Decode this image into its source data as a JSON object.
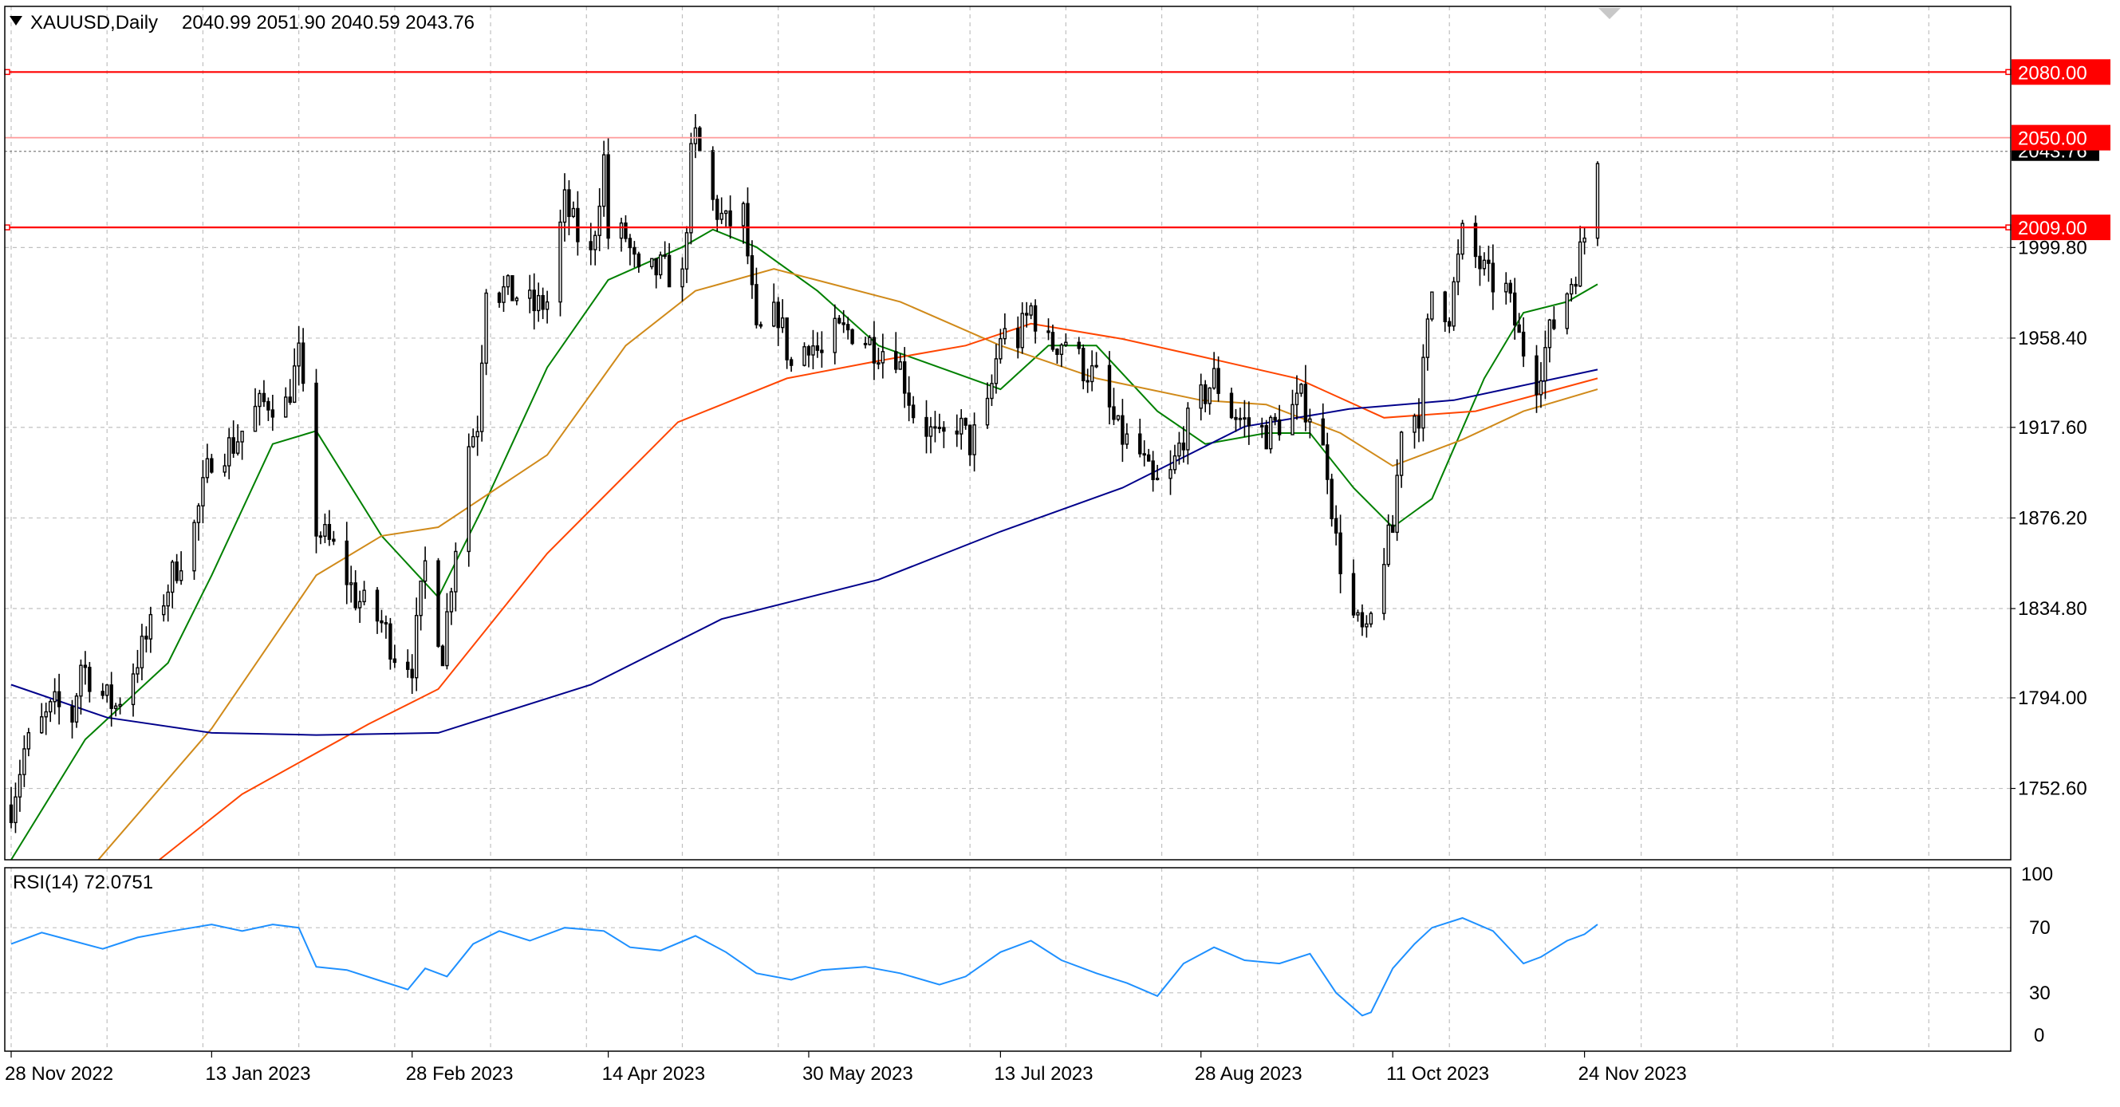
{
  "header": {
    "symbol": "XAUUSD,Daily",
    "ohlc": "2040.99 2051.90 2040.59 2043.76"
  },
  "rsi_header": {
    "label": "RSI(14) 72.0751"
  },
  "colors": {
    "background": "#ffffff",
    "grid": "#c0c0c0",
    "candle": "#000000",
    "ma_fast": "#008000",
    "ma_mid": "#d08a1a",
    "ma_slow": "#ff4500",
    "ma_long": "#00008b",
    "rsi_line": "#1e90ff",
    "hline": "#ff0000",
    "hline_light": "#ff9a9a"
  },
  "chart_data": [
    {
      "type": "line",
      "subtype": "candlestick",
      "x_range": [
        "2022-11-28",
        "2023-11-27"
      ],
      "ylim": [
        1720,
        2110
      ],
      "grid": true,
      "price_ticks": [
        "1752.60",
        "1794.00",
        "1834.80",
        "1876.20",
        "1917.60",
        "1958.40",
        "1999.80"
      ],
      "current_price_label": "2043.76",
      "date_ticks": [
        {
          "date": "2022-11-28",
          "label": "28 Nov 2022"
        },
        {
          "date": "2023-01-13",
          "label": "13 Jan 2023"
        },
        {
          "date": "2023-02-28",
          "label": "28 Feb 2023"
        },
        {
          "date": "2023-04-14",
          "label": "14 Apr 2023"
        },
        {
          "date": "2023-05-30",
          "label": "30 May 2023"
        },
        {
          "date": "2023-07-13",
          "label": "13 Jul 2023"
        },
        {
          "date": "2023-08-28",
          "label": "28 Aug 2023"
        },
        {
          "date": "2023-10-11",
          "label": "11 Oct 2023"
        },
        {
          "date": "2023-11-24",
          "label": "24 Nov 2023"
        }
      ],
      "horizontal_lines": [
        {
          "price": 2080.0,
          "label": "2080.00",
          "style": "strong"
        },
        {
          "price": 2050.0,
          "label": "2050.00",
          "style": "light"
        },
        {
          "price": 2009.0,
          "label": "2009.00",
          "style": "strong"
        }
      ],
      "price_path": [
        [
          "2022-11-28",
          1745
        ],
        [
          "2022-12-01",
          1770
        ],
        [
          "2022-12-05",
          1782
        ],
        [
          "2022-12-08",
          1790
        ],
        [
          "2022-12-12",
          1785
        ],
        [
          "2022-12-14",
          1810
        ],
        [
          "2022-12-19",
          1795
        ],
        [
          "2022-12-22",
          1790
        ],
        [
          "2022-12-27",
          1812
        ],
        [
          "2022-12-30",
          1825
        ],
        [
          "2023-01-04",
          1850
        ],
        [
          "2023-01-09",
          1872
        ],
        [
          "2023-01-13",
          1905
        ],
        [
          "2023-01-18",
          1910
        ],
        [
          "2023-01-23",
          1925
        ],
        [
          "2023-01-26",
          1930
        ],
        [
          "2023-01-30",
          1928
        ],
        [
          "2023-02-02",
          1950
        ],
        [
          "2023-02-06",
          1872
        ],
        [
          "2023-02-10",
          1862
        ],
        [
          "2023-02-15",
          1840
        ],
        [
          "2023-02-21",
          1828
        ],
        [
          "2023-02-24",
          1815
        ],
        [
          "2023-02-28",
          1810
        ],
        [
          "2023-03-03",
          1855
        ],
        [
          "2023-03-07",
          1815
        ],
        [
          "2023-03-10",
          1865
        ],
        [
          "2023-03-13",
          1910
        ],
        [
          "2023-03-15",
          1920
        ],
        [
          "2023-03-17",
          1985
        ],
        [
          "2023-03-20",
          1980
        ],
        [
          "2023-03-24",
          1978
        ],
        [
          "2023-03-28",
          1972
        ],
        [
          "2023-03-31",
          1975
        ],
        [
          "2023-04-04",
          2020
        ],
        [
          "2023-04-07",
          2005
        ],
        [
          "2023-04-10",
          1995
        ],
        [
          "2023-04-13",
          2040
        ],
        [
          "2023-04-14",
          2005
        ],
        [
          "2023-04-18",
          2005
        ],
        [
          "2023-04-21",
          1985
        ],
        [
          "2023-04-26",
          1990
        ],
        [
          "2023-05-01",
          1985
        ],
        [
          "2023-05-03",
          2040
        ],
        [
          "2023-05-04",
          2050
        ],
        [
          "2023-05-08",
          2020
        ],
        [
          "2023-05-11",
          2010
        ],
        [
          "2023-05-15",
          2015
        ],
        [
          "2023-05-18",
          1958
        ],
        [
          "2023-05-23",
          1970
        ],
        [
          "2023-05-26",
          1945
        ],
        [
          "2023-05-30",
          1958
        ],
        [
          "2023-06-02",
          1950
        ],
        [
          "2023-06-05",
          1960
        ],
        [
          "2023-06-09",
          1962
        ],
        [
          "2023-06-14",
          1955
        ],
        [
          "2023-06-19",
          1952
        ],
        [
          "2023-06-23",
          1925
        ],
        [
          "2023-06-29",
          1910
        ],
        [
          "2023-07-03",
          1920
        ],
        [
          "2023-07-06",
          1910
        ],
        [
          "2023-07-10",
          1925
        ],
        [
          "2023-07-13",
          1960
        ],
        [
          "2023-07-17",
          1958
        ],
        [
          "2023-07-20",
          1972
        ],
        [
          "2023-07-24",
          1955
        ],
        [
          "2023-07-28",
          1958
        ],
        [
          "2023-08-01",
          1945
        ],
        [
          "2023-08-04",
          1940
        ],
        [
          "2023-08-09",
          1915
        ],
        [
          "2023-08-14",
          1905
        ],
        [
          "2023-08-17",
          1890
        ],
        [
          "2023-08-21",
          1895
        ],
        [
          "2023-08-24",
          1915
        ],
        [
          "2023-08-28",
          1930
        ],
        [
          "2023-08-31",
          1940
        ],
        [
          "2023-09-04",
          1925
        ],
        [
          "2023-09-07",
          1920
        ],
        [
          "2023-09-12",
          1915
        ],
        [
          "2023-09-15",
          1920
        ],
        [
          "2023-09-20",
          1930
        ],
        [
          "2023-09-22",
          1925
        ],
        [
          "2023-09-26",
          1900
        ],
        [
          "2023-09-28",
          1865
        ],
        [
          "2023-10-02",
          1830
        ],
        [
          "2023-10-05",
          1820
        ],
        [
          "2023-10-06",
          1830
        ],
        [
          "2023-10-09",
          1860
        ],
        [
          "2023-10-11",
          1870
        ],
        [
          "2023-10-13",
          1920
        ],
        [
          "2023-10-17",
          1925
        ],
        [
          "2023-10-20",
          1980
        ],
        [
          "2023-10-24",
          1970
        ],
        [
          "2023-10-27",
          2005
        ],
        [
          "2023-10-30",
          1995
        ],
        [
          "2023-11-02",
          1985
        ],
        [
          "2023-11-06",
          1980
        ],
        [
          "2023-11-09",
          1958
        ],
        [
          "2023-11-13",
          1940
        ],
        [
          "2023-11-16",
          1960
        ],
        [
          "2023-11-20",
          1980
        ],
        [
          "2023-11-22",
          1990
        ],
        [
          "2023-11-24",
          2005
        ],
        [
          "2023-11-27",
          2044
        ]
      ],
      "series": [
        {
          "color": "#008000",
          "points": [
            [
              "2022-11-28",
              1720
            ],
            [
              "2022-12-15",
              1775
            ],
            [
              "2023-01-03",
              1810
            ],
            [
              "2023-01-13",
              1850
            ],
            [
              "2023-01-27",
              1910
            ],
            [
              "2023-02-06",
              1916
            ],
            [
              "2023-02-21",
              1868
            ],
            [
              "2023-03-06",
              1840
            ],
            [
              "2023-03-16",
              1880
            ],
            [
              "2023-03-31",
              1945
            ],
            [
              "2023-04-14",
              1985
            ],
            [
              "2023-05-01",
              2000
            ],
            [
              "2023-05-08",
              2008
            ],
            [
              "2023-05-18",
              2000
            ],
            [
              "2023-06-01",
              1980
            ],
            [
              "2023-06-15",
              1955
            ],
            [
              "2023-06-29",
              1945
            ],
            [
              "2023-07-13",
              1935
            ],
            [
              "2023-07-24",
              1955
            ],
            [
              "2023-08-04",
              1955
            ],
            [
              "2023-08-18",
              1925
            ],
            [
              "2023-08-29",
              1910
            ],
            [
              "2023-09-12",
              1915
            ],
            [
              "2023-09-22",
              1915
            ],
            [
              "2023-10-02",
              1890
            ],
            [
              "2023-10-11",
              1872
            ],
            [
              "2023-10-20",
              1885
            ],
            [
              "2023-11-01",
              1940
            ],
            [
              "2023-11-10",
              1970
            ],
            [
              "2023-11-20",
              1975
            ],
            [
              "2023-11-27",
              1983
            ]
          ]
        },
        {
          "color": "#d08a1a",
          "points": [
            [
              "2022-12-18",
              1720
            ],
            [
              "2023-01-13",
              1780
            ],
            [
              "2023-02-06",
              1850
            ],
            [
              "2023-02-21",
              1868
            ],
            [
              "2023-03-06",
              1872
            ],
            [
              "2023-03-31",
              1905
            ],
            [
              "2023-04-18",
              1955
            ],
            [
              "2023-05-04",
              1980
            ],
            [
              "2023-05-22",
              1990
            ],
            [
              "2023-06-20",
              1975
            ],
            [
              "2023-07-13",
              1955
            ],
            [
              "2023-08-04",
              1940
            ],
            [
              "2023-08-28",
              1930
            ],
            [
              "2023-09-12",
              1928
            ],
            [
              "2023-09-29",
              1915
            ],
            [
              "2023-10-11",
              1900
            ],
            [
              "2023-10-27",
              1912
            ],
            [
              "2023-11-10",
              1925
            ],
            [
              "2023-11-27",
              1935
            ]
          ]
        },
        {
          "color": "#ff4500",
          "points": [
            [
              "2023-01-01",
              1720
            ],
            [
              "2023-01-20",
              1750
            ],
            [
              "2023-02-18",
              1782
            ],
            [
              "2023-03-06",
              1798
            ],
            [
              "2023-03-31",
              1860
            ],
            [
              "2023-04-30",
              1920
            ],
            [
              "2023-05-25",
              1940
            ],
            [
              "2023-06-15",
              1948
            ],
            [
              "2023-07-05",
              1955
            ],
            [
              "2023-07-20",
              1965
            ],
            [
              "2023-08-10",
              1958
            ],
            [
              "2023-08-28",
              1950
            ],
            [
              "2023-09-19",
              1940
            ],
            [
              "2023-10-09",
              1922
            ],
            [
              "2023-10-30",
              1925
            ],
            [
              "2023-11-27",
              1940
            ]
          ]
        },
        {
          "color": "#00008b",
          "points": [
            [
              "2022-11-28",
              1800
            ],
            [
              "2022-12-20",
              1785
            ],
            [
              "2023-01-13",
              1778
            ],
            [
              "2023-02-06",
              1777
            ],
            [
              "2023-03-06",
              1778
            ],
            [
              "2023-04-10",
              1800
            ],
            [
              "2023-05-10",
              1830
            ],
            [
              "2023-06-15",
              1848
            ],
            [
              "2023-07-13",
              1870
            ],
            [
              "2023-08-10",
              1890
            ],
            [
              "2023-09-07",
              1918
            ],
            [
              "2023-10-01",
              1926
            ],
            [
              "2023-10-25",
              1930
            ],
            [
              "2023-11-27",
              1944
            ]
          ]
        }
      ]
    },
    {
      "type": "line",
      "title": "RSI(14) 72.0751",
      "ylim": [
        0,
        100
      ],
      "y_ticks": [
        "100",
        "70",
        "30",
        "0"
      ],
      "levels": [
        70,
        30
      ],
      "series": [
        {
          "color": "#1e90ff",
          "points": [
            [
              "2022-11-28",
              60
            ],
            [
              "2022-12-05",
              67
            ],
            [
              "2022-12-12",
              62
            ],
            [
              "2022-12-19",
              57
            ],
            [
              "2022-12-27",
              64
            ],
            [
              "2023-01-04",
              68
            ],
            [
              "2023-01-13",
              72
            ],
            [
              "2023-01-20",
              68
            ],
            [
              "2023-01-27",
              72
            ],
            [
              "2023-02-02",
              70
            ],
            [
              "2023-02-06",
              46
            ],
            [
              "2023-02-13",
              44
            ],
            [
              "2023-02-20",
              38
            ],
            [
              "2023-02-27",
              32
            ],
            [
              "2023-03-03",
              45
            ],
            [
              "2023-03-08",
              40
            ],
            [
              "2023-03-14",
              60
            ],
            [
              "2023-03-20",
              68
            ],
            [
              "2023-03-27",
              62
            ],
            [
              "2023-04-04",
              70
            ],
            [
              "2023-04-13",
              68
            ],
            [
              "2023-04-19",
              58
            ],
            [
              "2023-04-26",
              56
            ],
            [
              "2023-05-04",
              65
            ],
            [
              "2023-05-11",
              55
            ],
            [
              "2023-05-18",
              42
            ],
            [
              "2023-05-26",
              38
            ],
            [
              "2023-06-02",
              44
            ],
            [
              "2023-06-12",
              46
            ],
            [
              "2023-06-20",
              42
            ],
            [
              "2023-06-29",
              35
            ],
            [
              "2023-07-05",
              40
            ],
            [
              "2023-07-13",
              55
            ],
            [
              "2023-07-20",
              62
            ],
            [
              "2023-07-27",
              50
            ],
            [
              "2023-08-04",
              42
            ],
            [
              "2023-08-11",
              36
            ],
            [
              "2023-08-18",
              28
            ],
            [
              "2023-08-24",
              48
            ],
            [
              "2023-08-31",
              58
            ],
            [
              "2023-09-07",
              50
            ],
            [
              "2023-09-15",
              48
            ],
            [
              "2023-09-22",
              54
            ],
            [
              "2023-09-28",
              30
            ],
            [
              "2023-10-04",
              16
            ],
            [
              "2023-10-06",
              18
            ],
            [
              "2023-10-11",
              45
            ],
            [
              "2023-10-16",
              60
            ],
            [
              "2023-10-20",
              70
            ],
            [
              "2023-10-27",
              76
            ],
            [
              "2023-11-03",
              68
            ],
            [
              "2023-11-10",
              48
            ],
            [
              "2023-11-14",
              52
            ],
            [
              "2023-11-20",
              62
            ],
            [
              "2023-11-24",
              66
            ],
            [
              "2023-11-27",
              72
            ]
          ]
        }
      ]
    }
  ]
}
